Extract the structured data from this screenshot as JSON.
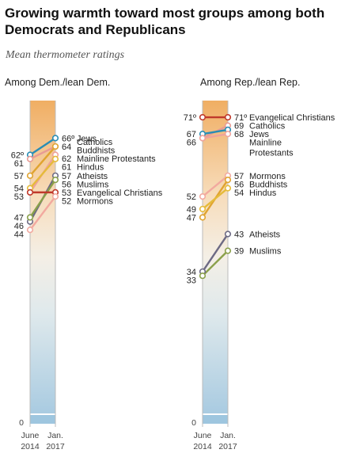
{
  "title": "Growing warmth toward most groups among both Democrats and Republicans",
  "subtitle": "Mean thermometer ratings",
  "chart_data": {
    "type": "line",
    "x": [
      "June 2014",
      "Jan. 2017"
    ],
    "x_tick_labels": [
      [
        "June",
        "2014"
      ],
      [
        "Jan.",
        "2017"
      ]
    ],
    "ylim": [
      0,
      75
    ],
    "axis_zero_label": "0",
    "degree_mark": "º",
    "panels": [
      {
        "name": "Among Dem./lean Dem.",
        "series": [
          {
            "name": "Jews",
            "values": [
              62,
              66
            ],
            "color": "#2a8db4",
            "degree": true
          },
          {
            "name": "Catholics",
            "values": [
              61,
              64
            ],
            "color": "#e89b94"
          },
          {
            "name": "Buddhists",
            "values": [
              57,
              64
            ],
            "color": "#e0a431"
          },
          {
            "name": "Mainline Protestants",
            "values": [
              53,
              62
            ],
            "color": "#efa39b"
          },
          {
            "name": "Hindus",
            "values": [
              54,
              61
            ],
            "color": "#e5bb3a"
          },
          {
            "name": "Atheists",
            "values": [
              46,
              57
            ],
            "color": "#6d6a84"
          },
          {
            "name": "Muslims",
            "values": [
              47,
              56
            ],
            "color": "#8aa04a"
          },
          {
            "name": "Evangelical Christians",
            "values": [
              53,
              53
            ],
            "color": "#c0392b"
          },
          {
            "name": "Mormons",
            "values": [
              44,
              52
            ],
            "color": "#f2a99f"
          }
        ],
        "start_labels": [
          "62º",
          "61",
          "57",
          "54",
          "53",
          "47",
          "46",
          "44"
        ],
        "end_labels": [
          {
            "value": "66º",
            "text": "Jews"
          },
          {
            "value": "64",
            "text": "Catholics"
          },
          {
            "value": "",
            "text": "Buddhists"
          },
          {
            "value": "62",
            "text": "Mainline Protestants"
          },
          {
            "value": "61",
            "text": "Hindus"
          },
          {
            "value": "57",
            "text": "Atheists"
          },
          {
            "value": "56",
            "text": "Muslims"
          },
          {
            "value": "53",
            "text": "Evangelical Christians"
          },
          {
            "value": "52",
            "text": "Mormons"
          }
        ]
      },
      {
        "name": "Among Rep./lean Rep.",
        "series": [
          {
            "name": "Evangelical Christians",
            "values": [
              71,
              71
            ],
            "color": "#c0392b",
            "degree": true
          },
          {
            "name": "Catholics",
            "values": [
              66,
              69
            ],
            "color": "#e89b94"
          },
          {
            "name": "Jews",
            "values": [
              67,
              68
            ],
            "color": "#2a8db4"
          },
          {
            "name": "Mainline Protestants",
            "values": [
              66,
              67
            ],
            "color": "#efa39b"
          },
          {
            "name": "Mormons",
            "values": [
              52,
              57
            ],
            "color": "#f2a99f"
          },
          {
            "name": "Buddhists",
            "values": [
              47,
              56
            ],
            "color": "#e0a431"
          },
          {
            "name": "Hindus",
            "values": [
              49,
              54
            ],
            "color": "#e5bb3a"
          },
          {
            "name": "Atheists",
            "values": [
              34,
              43
            ],
            "color": "#6d6a84"
          },
          {
            "name": "Muslims",
            "values": [
              33,
              39
            ],
            "color": "#8aa04a"
          }
        ],
        "start_labels": [
          "71º",
          "67",
          "66",
          "52",
          "49",
          "47",
          "34",
          "33"
        ],
        "end_labels": [
          {
            "value": "71º",
            "text": "Evangelical Christians"
          },
          {
            "value": "69",
            "text": "Catholics"
          },
          {
            "value": "68",
            "text": "Jews"
          },
          {
            "value": "",
            "text": "Mainline Protestants"
          },
          {
            "value": "57",
            "text": "Mormons"
          },
          {
            "value": "56",
            "text": "Buddhists"
          },
          {
            "value": "54",
            "text": "Hindus"
          },
          {
            "value": "43",
            "text": "Atheists"
          },
          {
            "value": "39",
            "text": "Muslims"
          }
        ]
      }
    ]
  }
}
